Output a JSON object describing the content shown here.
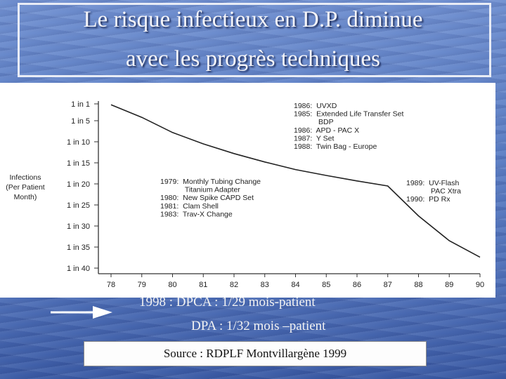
{
  "title": {
    "line1": "Le risque infectieux en D.P. diminue",
    "line2": "avec les progrès techniques"
  },
  "chart_data": {
    "type": "line",
    "ylabel_lines": [
      "Infections",
      "(Per Patient",
      "Month)"
    ],
    "x": [
      "78",
      "79",
      "80",
      "81",
      "82",
      "83",
      "84",
      "85",
      "86",
      "87",
      "88",
      "89",
      "90"
    ],
    "y_ticks": [
      "1 in 1",
      "1 in 5",
      "1 in 10",
      "1 in 15",
      "1 in 20",
      "1 in 25",
      "1 in 30",
      "1 in 35",
      "1 in 40"
    ],
    "y_tick_values": [
      1,
      5,
      10,
      15,
      20,
      25,
      30,
      35,
      40
    ],
    "ylim": [
      1,
      40
    ],
    "series": [
      {
        "points": [
          [
            78,
            1.2
          ],
          [
            79,
            4.2
          ],
          [
            80,
            7.8
          ],
          [
            81,
            10.5
          ],
          [
            82,
            12.8
          ],
          [
            83,
            14.8
          ],
          [
            84,
            16.6
          ],
          [
            85,
            18.0
          ],
          [
            86,
            19.3
          ],
          [
            87,
            20.5
          ],
          [
            88,
            27.6
          ],
          [
            89,
            33.5
          ],
          [
            90,
            37.4
          ]
        ]
      }
    ],
    "annotations": [
      {
        "lines": [
          "1986:  UVXD",
          "1985:  Extended Life Transfer Set",
          "            BDP",
          "1986:  APD - PAC X",
          "1987:  Y Set",
          "1988:  Twin Bag - Europe"
        ]
      },
      {
        "lines": [
          "1979:  Monthly Tubing Change",
          "            Titanium Adapter",
          "1980:  New Spike CAPD Set",
          "1981:  Clam Shell",
          "1983:  Trav-X Change"
        ]
      },
      {
        "lines": [
          "1989:  UV-Flash",
          "            PAC Xtra",
          "1990:  PD Rx"
        ]
      }
    ],
    "grid": false
  },
  "notes": {
    "line1": "1998 :  DPCA : 1/29 mois-patient",
    "line2": "DPA : 1/32 mois –patient"
  },
  "source": "Source : RDPLF Montvillargène 1999",
  "colors": {
    "background": "#5b7ec4",
    "title_text": "#f4f4f8",
    "chart_bg": "#ffffff",
    "line": "#222222"
  }
}
